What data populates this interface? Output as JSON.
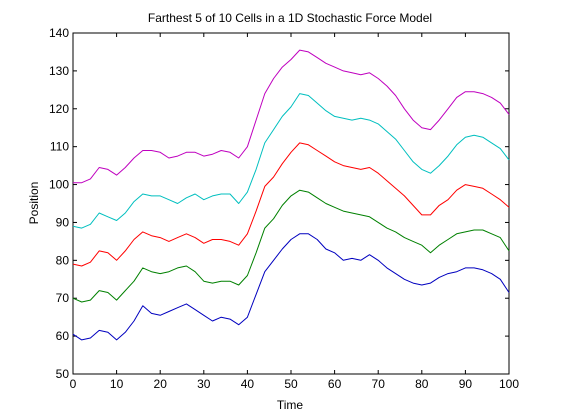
{
  "chart_data": {
    "type": "line",
    "title": "Farthest 5 of 10 Cells in a 1D Stochastic Force Model",
    "xlabel": "Time",
    "ylabel": "Position",
    "xlim": [
      0,
      100
    ],
    "ylim": [
      50,
      140
    ],
    "xticks": [
      0,
      10,
      20,
      30,
      40,
      50,
      60,
      70,
      80,
      90,
      100
    ],
    "yticks": [
      50,
      60,
      70,
      80,
      90,
      100,
      110,
      120,
      130,
      140
    ],
    "grid": false,
    "legend": "none",
    "x": [
      0,
      2,
      4,
      6,
      8,
      10,
      12,
      14,
      16,
      18,
      20,
      22,
      24,
      26,
      28,
      30,
      32,
      34,
      36,
      38,
      40,
      42,
      44,
      46,
      48,
      50,
      52,
      54,
      56,
      58,
      60,
      62,
      64,
      66,
      68,
      70,
      72,
      74,
      76,
      78,
      80,
      82,
      84,
      86,
      88,
      90,
      92,
      94,
      96,
      98,
      100
    ],
    "series": [
      {
        "color": "#0000bf",
        "values": [
          60.5,
          59,
          59.5,
          61.5,
          61,
          59,
          61,
          64,
          68,
          66,
          65.5,
          66.5,
          67.5,
          68.5,
          67,
          65.5,
          64,
          65,
          64.5,
          63,
          65,
          71,
          77,
          80,
          83,
          85.5,
          87,
          87,
          85.5,
          83,
          82,
          80,
          80.5,
          80,
          81.5,
          80,
          78,
          76.5,
          75,
          74,
          73.5,
          74,
          75.5,
          76.5,
          77,
          78,
          78,
          77.5,
          76.5,
          75,
          71.5
        ]
      },
      {
        "color": "#008000",
        "values": [
          70,
          69,
          69.5,
          72,
          71.5,
          69.5,
          72,
          74.5,
          78,
          77,
          76.5,
          77,
          78,
          78.5,
          77,
          74.5,
          74,
          74.5,
          74.5,
          73.5,
          76,
          82,
          88.5,
          91,
          94.5,
          97,
          98.5,
          98,
          96.5,
          95,
          94,
          93,
          92.5,
          92,
          91.5,
          90,
          88.5,
          87.5,
          86,
          85,
          84,
          82,
          84,
          85.5,
          87,
          87.5,
          88,
          88,
          87,
          86,
          82.5
        ]
      },
      {
        "color": "#ff0000",
        "values": [
          79,
          78.5,
          79.5,
          82.5,
          82,
          80,
          82.5,
          85.5,
          87.5,
          86.5,
          86,
          85,
          86,
          87,
          86,
          84.5,
          85.5,
          85.5,
          85,
          84,
          87,
          93,
          99.5,
          102,
          105.5,
          108.5,
          111,
          110.5,
          109,
          107.5,
          106,
          105,
          104.5,
          104,
          104.5,
          103,
          101,
          99,
          97,
          94.5,
          92,
          92,
          94.5,
          96,
          98.5,
          100,
          99.5,
          99,
          97.5,
          96,
          94
        ]
      },
      {
        "color": "#00bfbf",
        "values": [
          89,
          88.5,
          89.5,
          92.5,
          91.5,
          90.5,
          92.5,
          95.5,
          97.5,
          97,
          97,
          96,
          95,
          96.5,
          97.5,
          96,
          97,
          97.5,
          97.5,
          95,
          98,
          104,
          111,
          114.5,
          118,
          120.5,
          124,
          123.5,
          121.5,
          119.5,
          118,
          117.5,
          117,
          117.5,
          117,
          116,
          114,
          112,
          109,
          106,
          104,
          103,
          105,
          107.5,
          110.5,
          112.5,
          113,
          112.5,
          111,
          109.5,
          106.5
        ]
      },
      {
        "color": "#bf00bf",
        "values": [
          100.5,
          100.5,
          101.5,
          104.5,
          104,
          102.5,
          104.5,
          107,
          109,
          109,
          108.5,
          107,
          107.5,
          108.5,
          108.5,
          107.5,
          108,
          109,
          108.5,
          107,
          110,
          117,
          124,
          128,
          131,
          133,
          135.5,
          135,
          133.5,
          132,
          131,
          130,
          129.5,
          129,
          129.5,
          128,
          126,
          123.5,
          120,
          117,
          115,
          114.5,
          117,
          120,
          123,
          124.5,
          124.5,
          124,
          123,
          121.5,
          118.5
        ]
      }
    ]
  }
}
